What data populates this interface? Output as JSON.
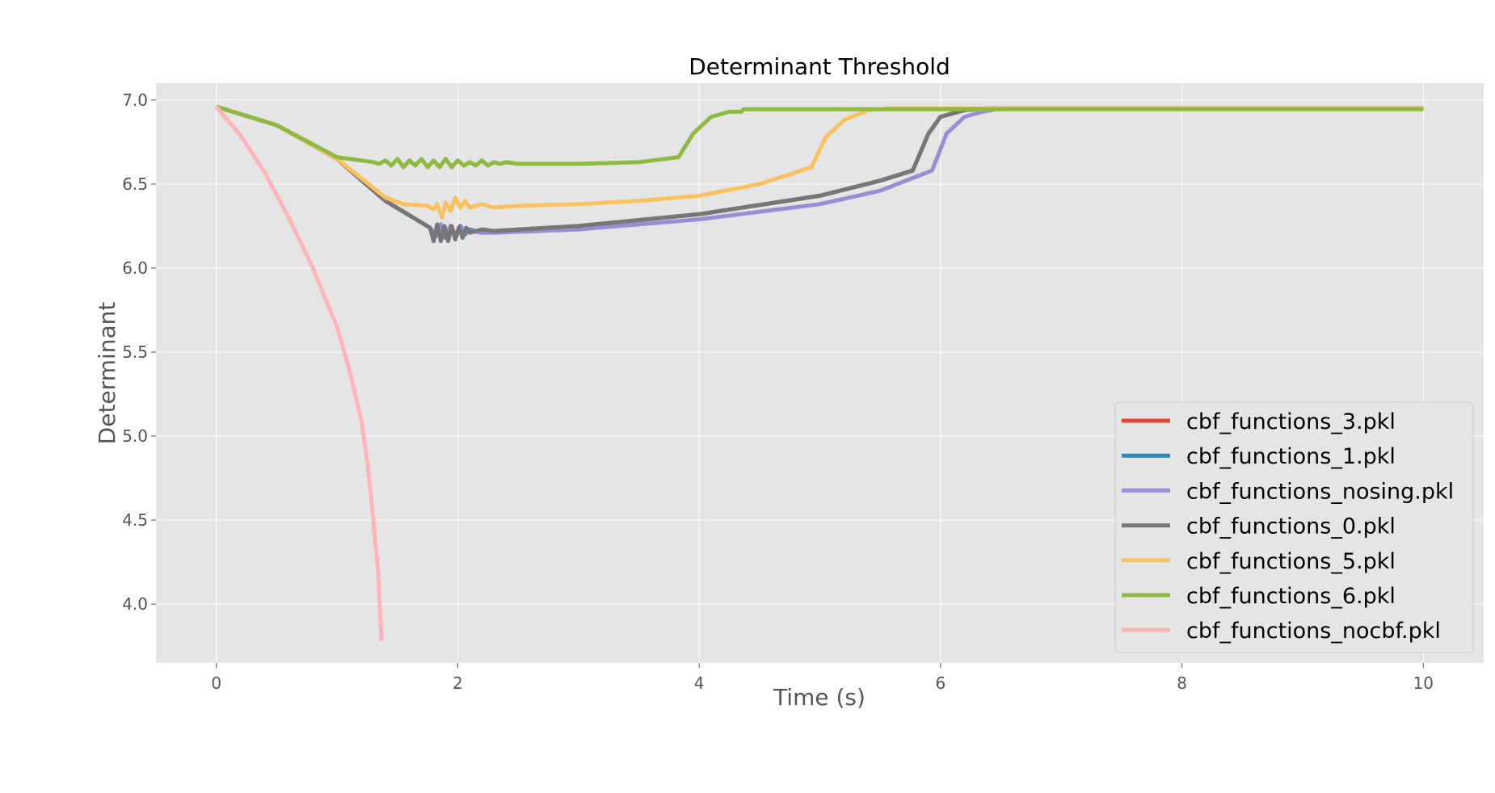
{
  "chart_data": {
    "type": "line",
    "title": "Determinant Threshold",
    "xlabel": "Time (s)",
    "ylabel": "Determinant",
    "xlim": [
      -0.5,
      10.5
    ],
    "ylim": [
      3.65,
      7.1
    ],
    "xticks": [
      0,
      2,
      4,
      6,
      8,
      10
    ],
    "xtick_labels": [
      "0",
      "2",
      "4",
      "6",
      "8",
      "10"
    ],
    "yticks": [
      4.0,
      4.5,
      5.0,
      5.5,
      6.0,
      6.5,
      7.0
    ],
    "ytick_labels": [
      "4.0",
      "4.5",
      "5.0",
      "5.5",
      "6.0",
      "6.5",
      "7.0"
    ],
    "grid": true,
    "legend_position": "bottom-right",
    "series": [
      {
        "name": "cbf_functions_3.pkl",
        "color": "#E24A33",
        "x": [
          0,
          0.5,
          1.0,
          1.4,
          1.77,
          1.82,
          1.86,
          1.9,
          1.94,
          1.98,
          2.02,
          2.06,
          2.1,
          2.2,
          2.3,
          3.0,
          4.0,
          5.0,
          5.5,
          5.77,
          5.9,
          6.0,
          6.2,
          6.4,
          7,
          8,
          9,
          10
        ],
        "y": [
          6.96,
          6.85,
          6.65,
          6.4,
          6.24,
          6.19,
          6.26,
          6.18,
          6.25,
          6.19,
          6.25,
          6.2,
          6.23,
          6.21,
          6.22,
          6.25,
          6.32,
          6.43,
          6.52,
          6.58,
          6.8,
          6.9,
          6.94,
          6.95,
          6.95,
          6.95,
          6.95,
          6.95
        ]
      },
      {
        "name": "cbf_functions_1.pkl",
        "color": "#348ABD",
        "x": [
          0,
          0.5,
          1.0,
          1.4,
          1.77,
          1.82,
          1.86,
          1.9,
          1.94,
          1.98,
          2.02,
          2.06,
          2.1,
          2.2,
          2.3,
          3.0,
          4.0,
          5.0,
          5.5,
          5.77,
          5.9,
          6.0,
          6.2,
          6.4,
          7,
          8,
          9,
          10
        ],
        "y": [
          6.96,
          6.85,
          6.65,
          6.4,
          6.24,
          6.19,
          6.26,
          6.18,
          6.25,
          6.19,
          6.25,
          6.2,
          6.23,
          6.21,
          6.22,
          6.25,
          6.32,
          6.43,
          6.52,
          6.58,
          6.8,
          6.9,
          6.94,
          6.95,
          6.95,
          6.95,
          6.95,
          6.95
        ]
      },
      {
        "name": "cbf_functions_nosing.pkl",
        "color": "#988ED5",
        "x": [
          0,
          0.5,
          1.0,
          1.4,
          1.77,
          1.82,
          1.86,
          1.9,
          1.94,
          1.98,
          2.02,
          2.06,
          2.1,
          2.2,
          2.3,
          3.0,
          4.0,
          5.0,
          5.5,
          5.93,
          6.05,
          6.2,
          6.35,
          6.5,
          7,
          8,
          9,
          10
        ],
        "y": [
          6.96,
          6.85,
          6.65,
          6.4,
          6.24,
          6.2,
          6.26,
          6.19,
          6.25,
          6.2,
          6.24,
          6.21,
          6.22,
          6.21,
          6.21,
          6.23,
          6.29,
          6.38,
          6.46,
          6.58,
          6.8,
          6.9,
          6.93,
          6.95,
          6.95,
          6.95,
          6.95,
          6.95
        ]
      },
      {
        "name": "cbf_functions_0.pkl",
        "color": "#777777",
        "x": [
          0,
          0.5,
          1.0,
          1.4,
          1.77,
          1.8,
          1.83,
          1.86,
          1.89,
          1.92,
          1.95,
          1.98,
          2.01,
          2.04,
          2.07,
          2.1,
          2.2,
          2.3,
          3.0,
          4.0,
          5.0,
          5.5,
          5.77,
          5.9,
          6.0,
          6.2,
          6.4,
          7,
          8,
          9,
          10
        ],
        "y": [
          6.96,
          6.85,
          6.65,
          6.4,
          6.24,
          6.16,
          6.26,
          6.16,
          6.25,
          6.16,
          6.25,
          6.17,
          6.24,
          6.18,
          6.24,
          6.21,
          6.23,
          6.22,
          6.25,
          6.32,
          6.43,
          6.52,
          6.58,
          6.8,
          6.9,
          6.94,
          6.95,
          6.95,
          6.95,
          6.95,
          6.95
        ]
      },
      {
        "name": "cbf_functions_5.pkl",
        "color": "#FBC15E",
        "x": [
          0,
          0.5,
          1.0,
          1.4,
          1.55,
          1.75,
          1.8,
          1.83,
          1.87,
          1.9,
          1.94,
          1.98,
          2.02,
          2.06,
          2.1,
          2.2,
          2.3,
          2.5,
          3.0,
          3.5,
          4.0,
          4.5,
          4.93,
          5.05,
          5.2,
          5.4,
          5.6,
          6,
          7,
          8,
          9,
          10
        ],
        "y": [
          6.96,
          6.85,
          6.65,
          6.42,
          6.38,
          6.37,
          6.35,
          6.38,
          6.3,
          6.39,
          6.34,
          6.42,
          6.36,
          6.4,
          6.36,
          6.38,
          6.36,
          6.37,
          6.38,
          6.4,
          6.43,
          6.5,
          6.6,
          6.78,
          6.88,
          6.94,
          6.95,
          6.95,
          6.95,
          6.95,
          6.95,
          6.95
        ]
      },
      {
        "name": "cbf_functions_6.pkl",
        "color": "#8EBA42",
        "x": [
          0,
          0.5,
          1.0,
          1.1,
          1.2,
          1.3,
          1.35,
          1.4,
          1.45,
          1.5,
          1.55,
          1.6,
          1.65,
          1.7,
          1.75,
          1.8,
          1.85,
          1.9,
          1.95,
          2.0,
          2.05,
          2.1,
          2.15,
          2.2,
          2.25,
          2.3,
          2.35,
          2.4,
          2.5,
          3.0,
          3.5,
          3.83,
          3.95,
          4.1,
          4.25,
          4.35,
          4.37,
          5,
          6,
          7,
          8,
          9,
          10
        ],
        "y": [
          6.96,
          6.85,
          6.66,
          6.65,
          6.64,
          6.63,
          6.62,
          6.64,
          6.61,
          6.65,
          6.6,
          6.64,
          6.61,
          6.65,
          6.6,
          6.64,
          6.6,
          6.65,
          6.6,
          6.64,
          6.61,
          6.63,
          6.61,
          6.64,
          6.61,
          6.63,
          6.62,
          6.63,
          6.62,
          6.62,
          6.63,
          6.66,
          6.8,
          6.9,
          6.93,
          6.93,
          6.945,
          6.945,
          6.945,
          6.945,
          6.945,
          6.945,
          6.945
        ]
      },
      {
        "name": "cbf_functions_nocbf.pkl",
        "color": "#FFB5B8",
        "x": [
          0,
          0.2,
          0.4,
          0.6,
          0.8,
          1.0,
          1.1,
          1.2,
          1.25,
          1.28,
          1.3,
          1.32,
          1.34,
          1.35,
          1.36,
          1.37
        ],
        "y": [
          6.96,
          6.79,
          6.57,
          6.3,
          6.0,
          5.65,
          5.4,
          5.1,
          4.85,
          4.65,
          4.5,
          4.35,
          4.2,
          4.05,
          3.9,
          3.78
        ]
      }
    ]
  }
}
